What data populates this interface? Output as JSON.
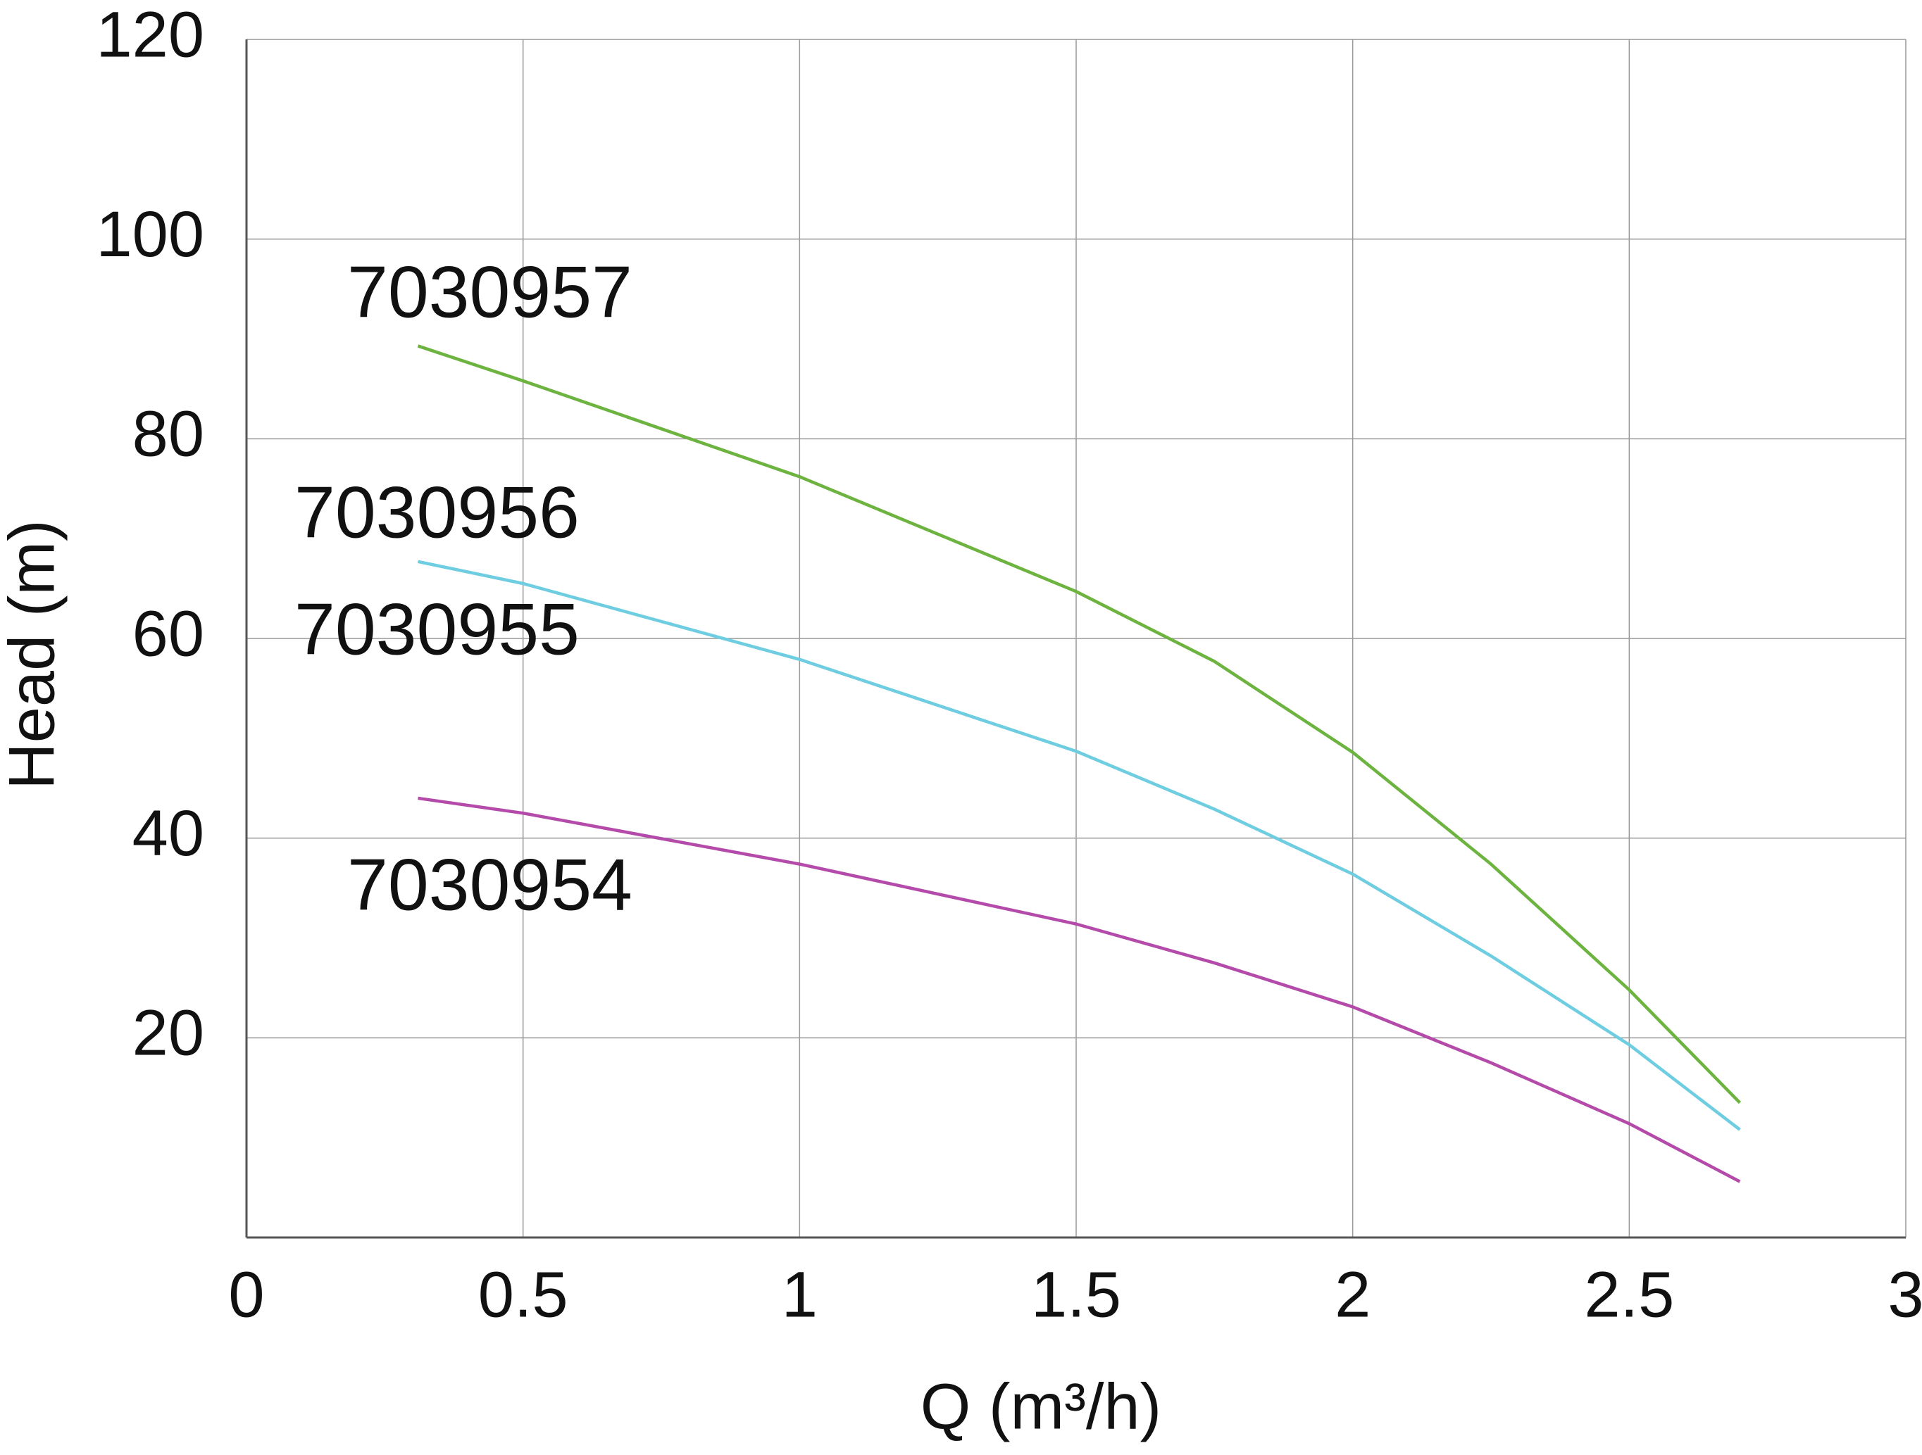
{
  "chart_data": {
    "type": "line",
    "x_label": "Q (m³/h)",
    "y_label": "Head (m)",
    "x": [
      0.31,
      0.5,
      1,
      1.5,
      1.75,
      2,
      2.25,
      2.5,
      2.7
    ],
    "series": [
      {
        "name": "7030957",
        "color": "#6db33f",
        "values": [
          89.3,
          85.8,
          76.2,
          64.7,
          57.7,
          48.6,
          37.4,
          24.8,
          13.5
        ]
      },
      {
        "name": "7030956",
        "color": "#6ecde0",
        "values": [
          67.7,
          65.5,
          57.9,
          48.7,
          42.9,
          36.4,
          28.2,
          19.3,
          10.8
        ]
      },
      {
        "name": "7030954",
        "color": "#b44aa9",
        "values": [
          44.0,
          42.5,
          37.4,
          31.4,
          27.5,
          23.1,
          17.5,
          11.4,
          5.6
        ]
      }
    ],
    "annotations": [
      "7030955"
    ],
    "xlim": [
      0,
      3
    ],
    "xticks": [
      0,
      0.5,
      1,
      1.5,
      2,
      2.5,
      3
    ],
    "ylim": [
      0,
      120
    ],
    "yticks": [
      20,
      40,
      60,
      80,
      100,
      120
    ],
    "grid": true
  }
}
